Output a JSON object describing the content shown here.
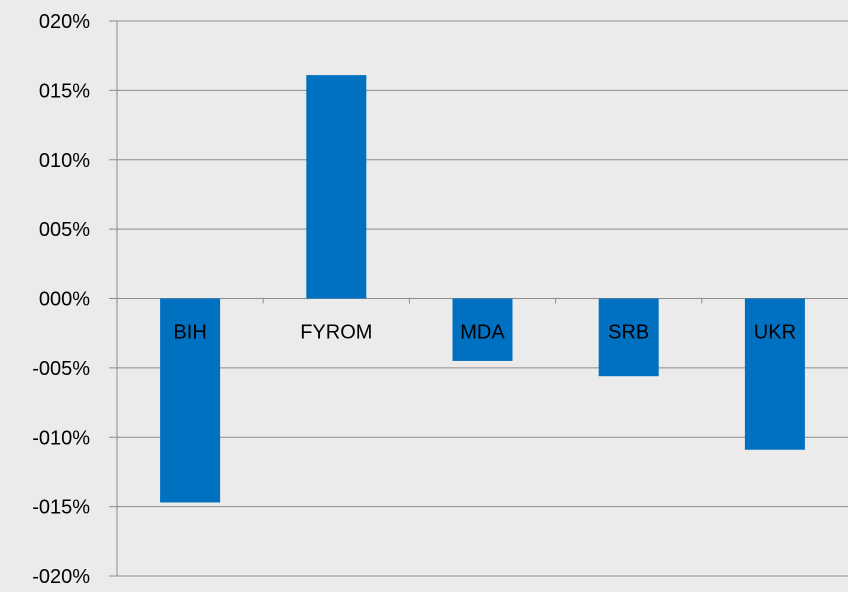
{
  "chart_data": {
    "type": "bar",
    "categories": [
      "BIH",
      "FYROM",
      "MDA",
      "SRB",
      "UKR"
    ],
    "values": [
      -14.7,
      16.1,
      -4.5,
      -5.6,
      -10.9
    ],
    "ylim": [
      -20,
      20
    ],
    "yticks": [
      20,
      15,
      10,
      5,
      0,
      -5,
      -10,
      -15,
      -20
    ],
    "ytick_labels": [
      "020%",
      "015%",
      "010%",
      "005%",
      "000%",
      "-005%",
      "-010%",
      "-015%",
      "-020%"
    ],
    "grid": true,
    "legend": "none",
    "bar_color": "#0070c0",
    "grid_color": "#8c8c8c",
    "background_color": "#ebebeb"
  }
}
